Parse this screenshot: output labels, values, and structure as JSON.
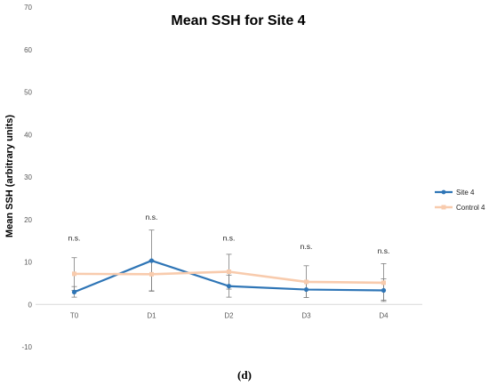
{
  "chart_data": {
    "type": "line",
    "title": "Mean SSH for Site 4",
    "xlabel": "",
    "ylabel": "Mean SSH (arbitrary units)",
    "categories": [
      "T0",
      "D1",
      "D2",
      "D3",
      "D4"
    ],
    "ylim": [
      -10,
      70
    ],
    "yticks": [
      -10,
      0,
      10,
      20,
      30,
      40,
      50,
      60,
      70
    ],
    "grid": false,
    "legend_position": "right",
    "series": [
      {
        "name": "Site 4",
        "color": "#2e75b6",
        "values": [
          2.9,
          10.3,
          4.3,
          3.5,
          3.3
        ],
        "err_low": [
          1.7,
          3.2,
          1.7,
          1.6,
          0.7
        ],
        "err_high": [
          4.2,
          17.5,
          6.9,
          5.5,
          6.0
        ]
      },
      {
        "name": "Control 4",
        "color": "#f8cbad",
        "values": [
          7.2,
          7.1,
          7.7,
          5.3,
          5.1
        ],
        "err_low": [
          3.3,
          3.1,
          3.6,
          1.6,
          1.0
        ],
        "err_high": [
          11.0,
          10.4,
          11.8,
          9.1,
          9.6
        ]
      }
    ],
    "annotations": [
      "n.s.",
      "n.s.",
      "n.s.",
      "n.s.",
      "n.s."
    ],
    "annotation_y": [
      15,
      20,
      15,
      13,
      12
    ]
  },
  "caption": "(d)"
}
